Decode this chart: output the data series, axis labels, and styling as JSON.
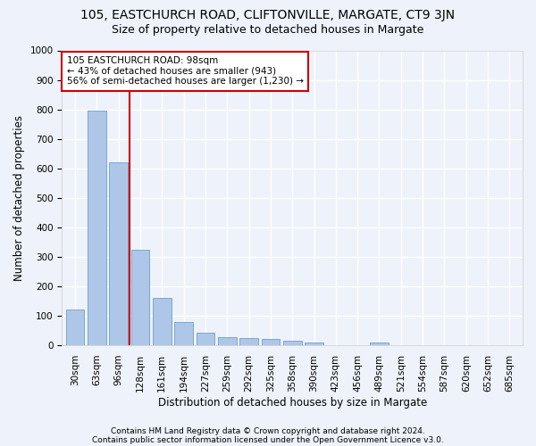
{
  "title1": "105, EASTCHURCH ROAD, CLIFTONVILLE, MARGATE, CT9 3JN",
  "title2": "Size of property relative to detached houses in Margate",
  "xlabel": "Distribution of detached houses by size in Margate",
  "ylabel": "Number of detached properties",
  "categories": [
    "30sqm",
    "63sqm",
    "96sqm",
    "128sqm",
    "161sqm",
    "194sqm",
    "227sqm",
    "259sqm",
    "292sqm",
    "325sqm",
    "358sqm",
    "390sqm",
    "423sqm",
    "456sqm",
    "489sqm",
    "521sqm",
    "554sqm",
    "587sqm",
    "620sqm",
    "652sqm",
    "685sqm"
  ],
  "values": [
    120,
    795,
    620,
    325,
    160,
    78,
    42,
    28,
    25,
    20,
    15,
    10,
    0,
    0,
    10,
    0,
    0,
    0,
    0,
    0,
    0
  ],
  "bar_color": "#aec6e8",
  "bar_edge_color": "#7aa8d0",
  "vline_color": "#cc0000",
  "annotation_line1": "105 EASTCHURCH ROAD: 98sqm",
  "annotation_line2": "← 43% of detached houses are smaller (943)",
  "annotation_line3": "56% of semi-detached houses are larger (1,230) →",
  "annotation_box_color": "#ffffff",
  "annotation_box_edge": "#cc0000",
  "ylim": [
    0,
    1000
  ],
  "yticks": [
    0,
    100,
    200,
    300,
    400,
    500,
    600,
    700,
    800,
    900,
    1000
  ],
  "footer1": "Contains HM Land Registry data © Crown copyright and database right 2024.",
  "footer2": "Contains public sector information licensed under the Open Government Licence v3.0.",
  "bg_color": "#eef2fa",
  "plot_bg_color": "#eef2fa",
  "grid_color": "#ffffff",
  "title1_fontsize": 10,
  "title2_fontsize": 9,
  "xlabel_fontsize": 8.5,
  "ylabel_fontsize": 8.5,
  "tick_fontsize": 7.5,
  "annotation_fontsize": 7.5,
  "footer_fontsize": 6.5
}
